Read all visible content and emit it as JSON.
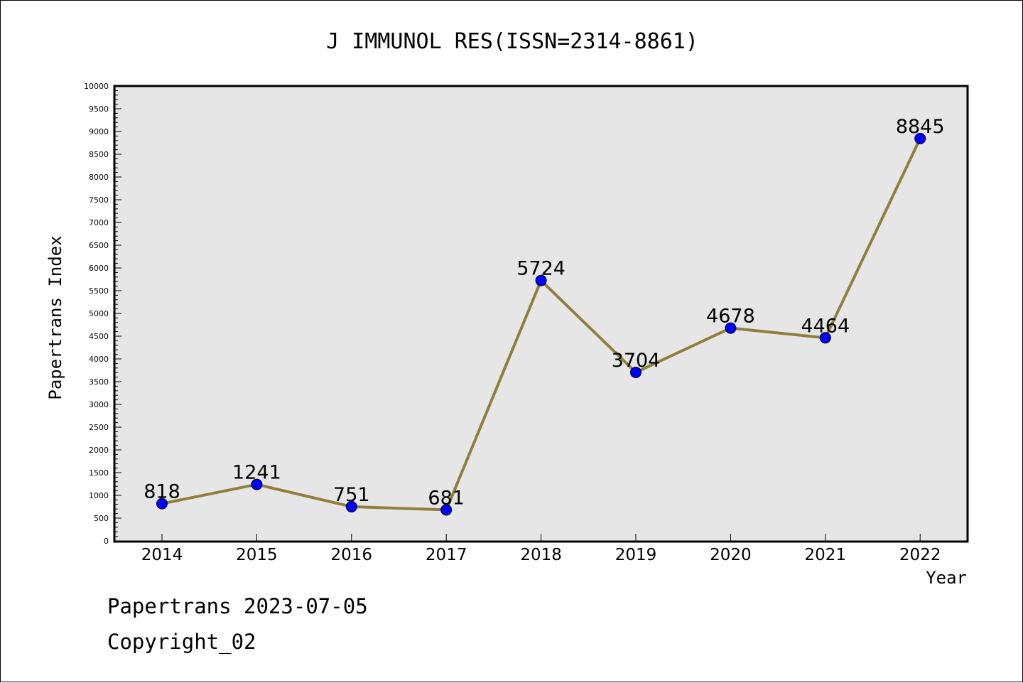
{
  "chart_data": {
    "type": "line",
    "title": "J IMMUNOL RES(ISSN=2314-8861)",
    "xlabel": "Year",
    "ylabel": "Papertrans Index",
    "categories": [
      "2014",
      "2015",
      "2016",
      "2017",
      "2018",
      "2019",
      "2020",
      "2021",
      "2022"
    ],
    "values": [
      818,
      1241,
      751,
      681,
      5724,
      3704,
      4678,
      4464,
      8845
    ],
    "data_labels": [
      "818",
      "1241",
      "751",
      "681",
      "5724",
      "3704",
      "4678",
      "4464",
      "8845"
    ],
    "ylim": [
      0,
      10000
    ],
    "yticks": [
      "0",
      "500",
      "1000",
      "1500",
      "2000",
      "2500",
      "3000",
      "3500",
      "4000",
      "4500",
      "5000",
      "5500",
      "6000",
      "6500",
      "7000",
      "7500",
      "8000",
      "8500",
      "9000",
      "9500",
      "10000"
    ],
    "grid": false,
    "legend": "none"
  },
  "colors": {
    "plot_background": "#e6e6e6",
    "line": "#8f7f3c",
    "marker": "#0000ff",
    "axis": "#000000"
  },
  "footer": {
    "line1": "Papertrans 2023-07-05",
    "line2": "Copyright_02"
  }
}
